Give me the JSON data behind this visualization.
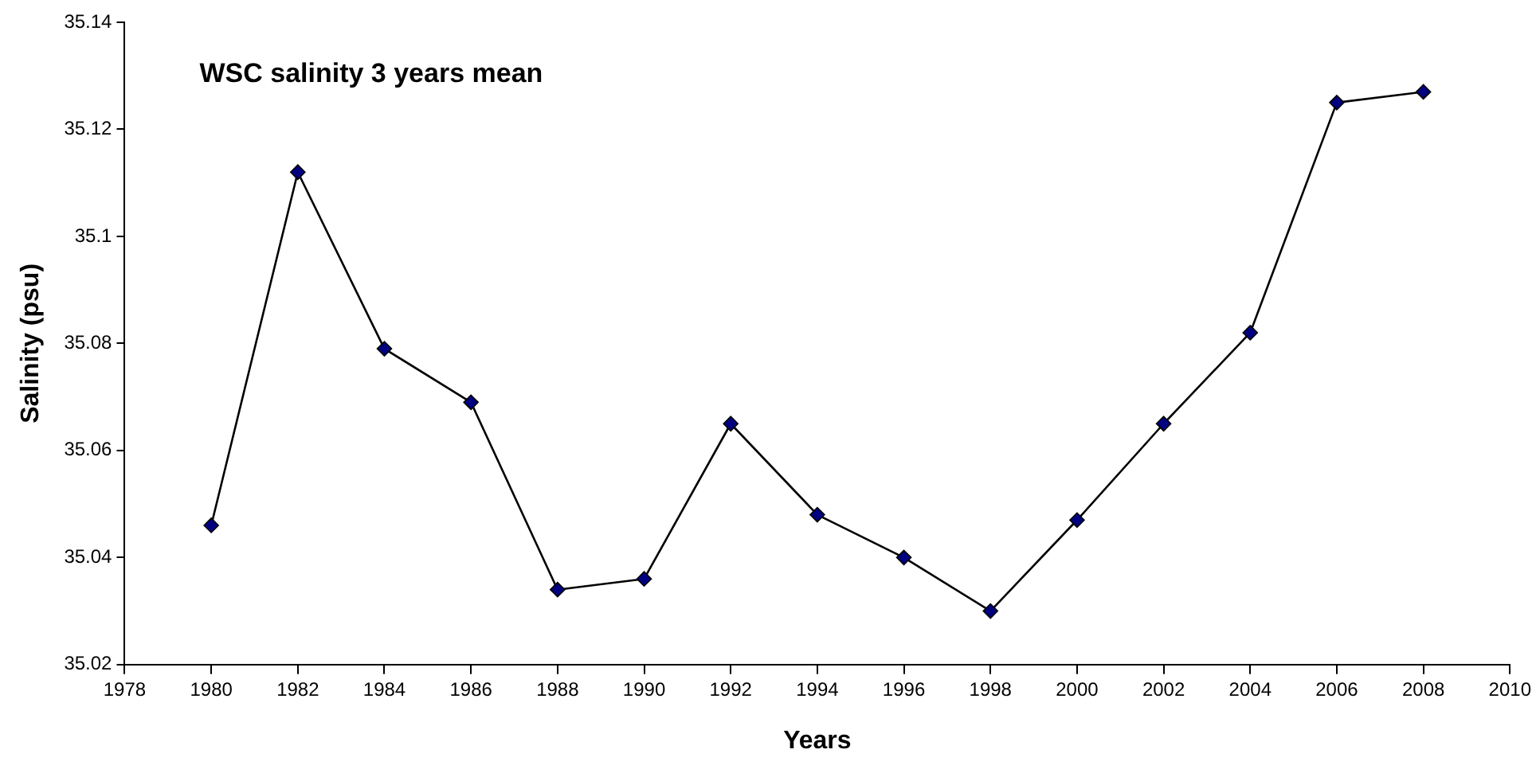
{
  "chart_data": {
    "type": "line",
    "title": "WSC salinity 3 years mean",
    "xlabel": "Years",
    "ylabel": "Salinity (psu)",
    "x": [
      1980,
      1982,
      1984,
      1986,
      1988,
      1990,
      1992,
      1994,
      1996,
      1998,
      2000,
      2002,
      2004,
      2006,
      2008
    ],
    "values": [
      35.046,
      35.112,
      35.079,
      35.069,
      35.034,
      35.036,
      35.065,
      35.048,
      35.04,
      35.03,
      35.047,
      35.065,
      35.082,
      35.125,
      35.127
    ],
    "color": "#000080",
    "xlim": [
      1978,
      2010
    ],
    "xticks": [
      1978,
      1980,
      1982,
      1984,
      1986,
      1988,
      1990,
      1992,
      1994,
      1996,
      1998,
      2000,
      2002,
      2004,
      2006,
      2008,
      2010
    ],
    "ylim": [
      35.02,
      35.14
    ],
    "yticks": [
      35.02,
      35.04,
      35.06,
      35.08,
      35.1,
      35.12,
      35.14
    ],
    "marker": "diamond",
    "legend": false,
    "grid": false
  }
}
